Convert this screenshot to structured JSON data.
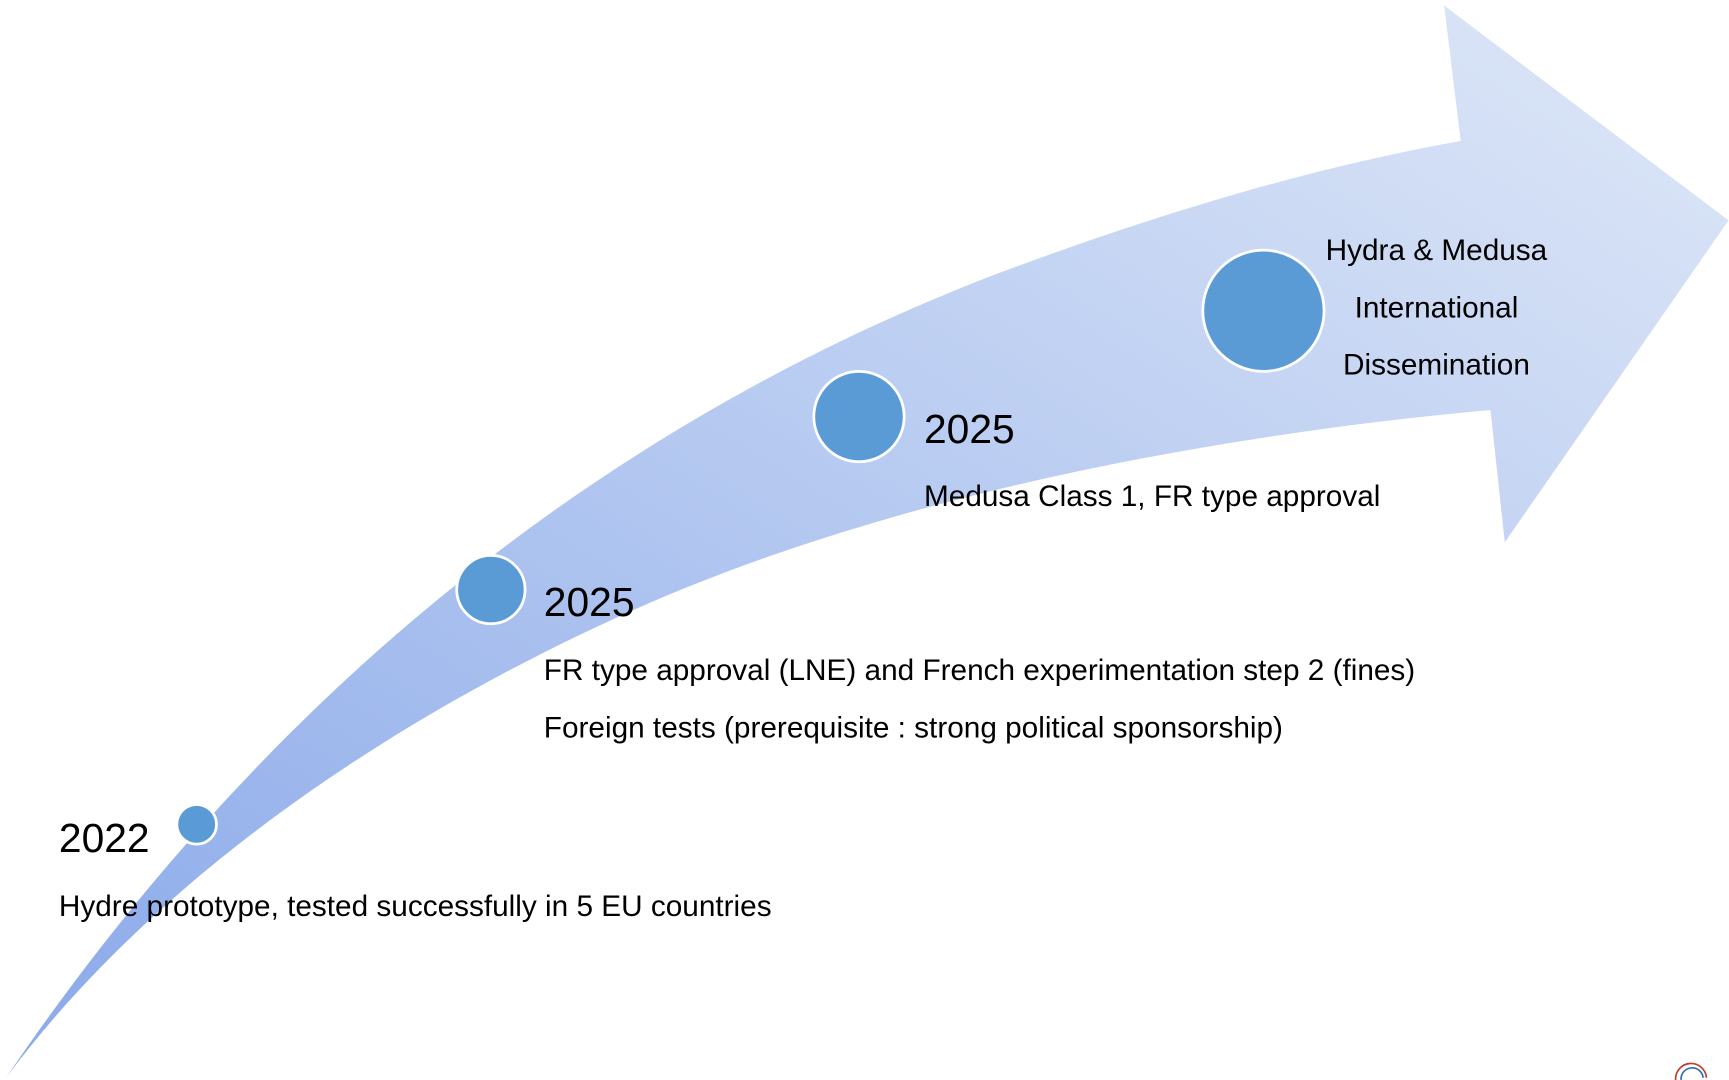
{
  "milestones": [
    {
      "year": "2022",
      "lines": [
        "Hydre prototype, tested successfully in 5 EU countries"
      ]
    },
    {
      "year": "2025",
      "lines": [
        "FR type approval (LNE) and French experimentation step 2 (fines)",
        "Foreign tests (prerequisite : strong political sponsorship)"
      ]
    },
    {
      "year": "2025",
      "lines": [
        "Medusa Class 1, FR type approval"
      ]
    },
    {
      "lines": [
        "Hydra & Medusa",
        "International",
        "Dissemination"
      ]
    }
  ]
}
